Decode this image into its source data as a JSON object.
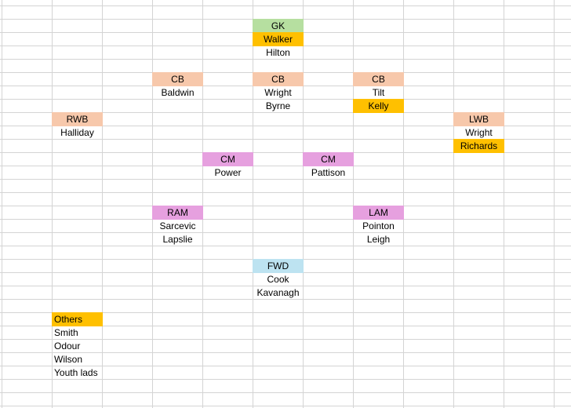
{
  "colors": {
    "gk": "#b6dfa0",
    "highlight": "#ffc000",
    "defender": "#f7c8ab",
    "midfield": "#e6a0df",
    "forward": "#bde3f1",
    "gridline": "#d4d4d4"
  },
  "cells": [
    {
      "id": "gk-header",
      "text": "GK",
      "col": 5,
      "row": 1,
      "fill": "gk",
      "align": "c"
    },
    {
      "id": "gk-walker",
      "text": "Walker",
      "col": 5,
      "row": 2,
      "fill": "highlight",
      "align": "c"
    },
    {
      "id": "gk-hilton",
      "text": "Hilton",
      "col": 5,
      "row": 3,
      "fill": "",
      "align": "c"
    },
    {
      "id": "cb-left-header",
      "text": "CB",
      "col": 3,
      "row": 5,
      "fill": "defender",
      "align": "c"
    },
    {
      "id": "cb-left-baldwin",
      "text": "Baldwin",
      "col": 3,
      "row": 6,
      "fill": "",
      "align": "c"
    },
    {
      "id": "cb-centre-header",
      "text": "CB",
      "col": 5,
      "row": 5,
      "fill": "defender",
      "align": "c"
    },
    {
      "id": "cb-centre-wright",
      "text": "Wright",
      "col": 5,
      "row": 6,
      "fill": "",
      "align": "c"
    },
    {
      "id": "cb-centre-byrne",
      "text": "Byrne",
      "col": 5,
      "row": 7,
      "fill": "",
      "align": "c"
    },
    {
      "id": "cb-right-header",
      "text": "CB",
      "col": 7,
      "row": 5,
      "fill": "defender",
      "align": "c"
    },
    {
      "id": "cb-right-tilt",
      "text": "Tilt",
      "col": 7,
      "row": 6,
      "fill": "",
      "align": "c"
    },
    {
      "id": "cb-right-kelly",
      "text": "Kelly",
      "col": 7,
      "row": 7,
      "fill": "highlight",
      "align": "c"
    },
    {
      "id": "rwb-header",
      "text": "RWB",
      "col": 1,
      "row": 8,
      "fill": "defender",
      "align": "c"
    },
    {
      "id": "rwb-halliday",
      "text": "Halliday",
      "col": 1,
      "row": 9,
      "fill": "",
      "align": "c"
    },
    {
      "id": "lwb-header",
      "text": "LWB",
      "col": 9,
      "row": 8,
      "fill": "defender",
      "align": "c"
    },
    {
      "id": "lwb-wright",
      "text": "Wright",
      "col": 9,
      "row": 9,
      "fill": "",
      "align": "c"
    },
    {
      "id": "lwb-richards",
      "text": "Richards",
      "col": 9,
      "row": 10,
      "fill": "highlight",
      "align": "c"
    },
    {
      "id": "cm-left-header",
      "text": "CM",
      "col": 4,
      "row": 11,
      "fill": "midfield",
      "align": "c"
    },
    {
      "id": "cm-left-power",
      "text": "Power",
      "col": 4,
      "row": 12,
      "fill": "",
      "align": "c"
    },
    {
      "id": "cm-right-header",
      "text": "CM",
      "col": 6,
      "row": 11,
      "fill": "midfield",
      "align": "c"
    },
    {
      "id": "cm-right-pattison",
      "text": "Pattison",
      "col": 6,
      "row": 12,
      "fill": "",
      "align": "c"
    },
    {
      "id": "ram-header",
      "text": "RAM",
      "col": 3,
      "row": 15,
      "fill": "midfield",
      "align": "c"
    },
    {
      "id": "ram-sarcevic",
      "text": "Sarcevic",
      "col": 3,
      "row": 16,
      "fill": "",
      "align": "c"
    },
    {
      "id": "ram-lapslie",
      "text": "Lapslie",
      "col": 3,
      "row": 17,
      "fill": "",
      "align": "c"
    },
    {
      "id": "lam-header",
      "text": "LAM",
      "col": 7,
      "row": 15,
      "fill": "midfield",
      "align": "c"
    },
    {
      "id": "lam-pointon",
      "text": "Pointon",
      "col": 7,
      "row": 16,
      "fill": "",
      "align": "c"
    },
    {
      "id": "lam-leigh",
      "text": "Leigh",
      "col": 7,
      "row": 17,
      "fill": "",
      "align": "c"
    },
    {
      "id": "fwd-header",
      "text": "FWD",
      "col": 5,
      "row": 19,
      "fill": "forward",
      "align": "c"
    },
    {
      "id": "fwd-cook",
      "text": "Cook",
      "col": 5,
      "row": 20,
      "fill": "",
      "align": "c"
    },
    {
      "id": "fwd-kavanagh",
      "text": "Kavanagh",
      "col": 5,
      "row": 21,
      "fill": "",
      "align": "c"
    },
    {
      "id": "others-header",
      "text": "Others",
      "col": 1,
      "row": 23,
      "fill": "highlight",
      "align": "l"
    },
    {
      "id": "others-smith",
      "text": "Smith",
      "col": 1,
      "row": 24,
      "fill": "",
      "align": "l"
    },
    {
      "id": "others-odour",
      "text": "Odour",
      "col": 1,
      "row": 25,
      "fill": "",
      "align": "l"
    },
    {
      "id": "others-wilson",
      "text": "Wilson",
      "col": 1,
      "row": 26,
      "fill": "",
      "align": "l"
    },
    {
      "id": "others-youth-lads",
      "text": "Youth lads",
      "col": 1,
      "row": 27,
      "fill": "",
      "align": "l"
    }
  ]
}
